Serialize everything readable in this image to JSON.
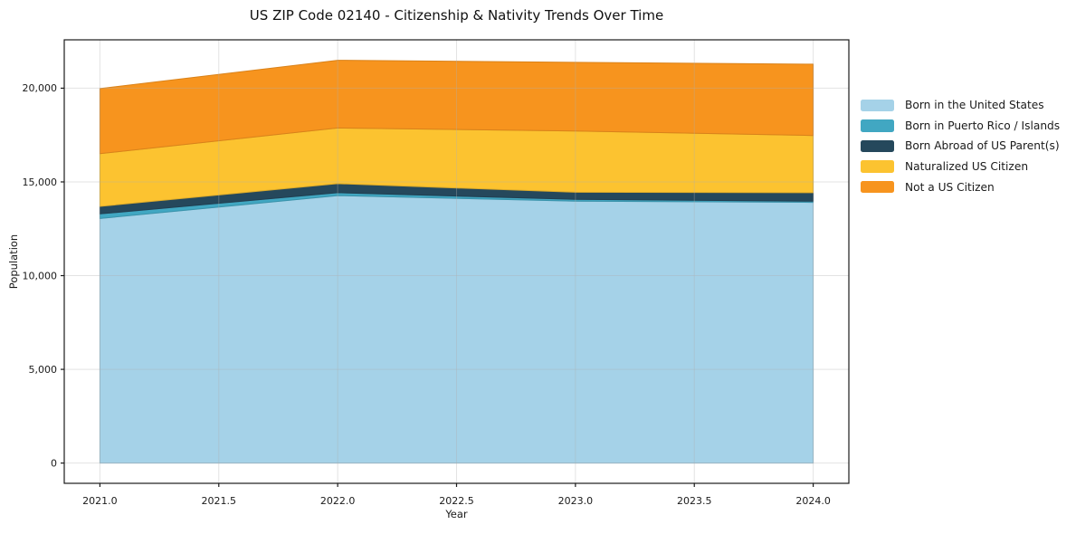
{
  "figure": {
    "title": "US ZIP Code 02140 - Citizenship & Nativity Trends Over Time",
    "xlabel": "Year",
    "ylabel": "Population"
  },
  "chart_data": {
    "type": "area",
    "stacked": true,
    "title": "US ZIP Code 02140 - Citizenship & Nativity Trends Over Time",
    "xlabel": "Year",
    "ylabel": "Population",
    "x": [
      2021,
      2022,
      2023,
      2024
    ],
    "series": [
      {
        "name": "Born in the United States",
        "color": "#a5d2e8",
        "values": [
          13050,
          14270,
          13970,
          13910
        ]
      },
      {
        "name": "Born in Puerto Rico / Islands",
        "color": "#41a7c2",
        "values": [
          245,
          155,
          95,
          60
        ]
      },
      {
        "name": "Born Abroad of US Parent(s)",
        "color": "#25485c",
        "values": [
          400,
          480,
          385,
          455
        ]
      },
      {
        "name": "Naturalized US Citizen",
        "color": "#fcc330",
        "values": [
          2810,
          2970,
          3265,
          3050
        ]
      },
      {
        "name": "Not a US Citizen",
        "color": "#f7941e",
        "values": [
          3470,
          3615,
          3665,
          3805
        ]
      }
    ],
    "totals": [
      19975,
      21490,
      21380,
      21280
    ],
    "xlim": [
      2020.85,
      2024.15
    ],
    "ylim": [
      -1080,
      22580
    ],
    "xticks": {
      "values": [
        2021,
        2021.5,
        2022,
        2022.5,
        2023,
        2023.5,
        2024
      ],
      "labels": [
        "2021.0",
        "2021.5",
        "2022.0",
        "2022.5",
        "2023.0",
        "2023.5",
        "2024.0"
      ]
    },
    "yticks": {
      "values": [
        0,
        5000,
        10000,
        15000,
        20000
      ],
      "labels": [
        "0",
        "5,000",
        "10,000",
        "15,000",
        "20,000"
      ]
    },
    "grid": true,
    "legend_position": "right-outside"
  },
  "colors": {
    "background": "#ffffff",
    "frame": "#1a1a1a",
    "grid": "#b0b0b0",
    "text": "#1a1a1a"
  }
}
